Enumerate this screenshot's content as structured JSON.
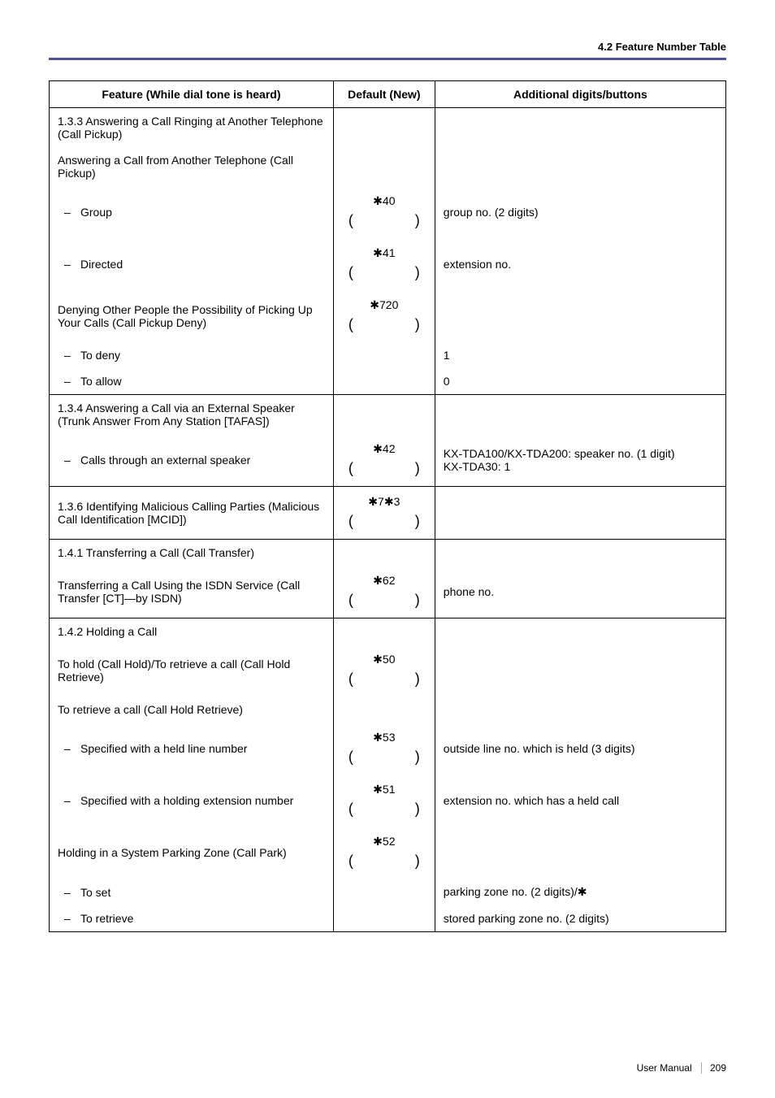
{
  "header": {
    "section_title": "4.2 Feature Number Table"
  },
  "table": {
    "headers": {
      "feature": "Feature (While dial tone is heard)",
      "default": "Default (New)",
      "additional": "Additional digits/buttons"
    },
    "rows": [
      {
        "feature": "1.3.3 Answering a Call Ringing at Another Telephone (Call Pickup)",
        "default": "",
        "additional": "",
        "section": true
      },
      {
        "feature": "Answering a Call from Another Telephone (Call Pickup)",
        "default": "",
        "additional": "",
        "section": true
      },
      {
        "feature": "Group",
        "default": "*40",
        "default_parens": true,
        "additional": "group no. (2 digits)",
        "sub": true
      },
      {
        "feature": "Directed",
        "default": "*41",
        "default_parens": true,
        "additional": "extension no.",
        "sub": true
      },
      {
        "feature": "Denying Other People the Possibility of Picking Up Your Calls (Call Pickup Deny)",
        "default": "*720",
        "default_parens": true,
        "additional": ""
      },
      {
        "feature": "To deny",
        "default": "",
        "additional": "1",
        "sub": true
      },
      {
        "feature": "To allow",
        "default": "",
        "additional": "0",
        "sub": true
      },
      {
        "feature": "1.3.4 Answering a Call via an External Speaker (Trunk Answer From Any Station [TAFAS])",
        "default": "",
        "additional": "",
        "section": true
      },
      {
        "feature": "Calls through an external speaker",
        "default": "*42",
        "default_parens": true,
        "additional": "KX-TDA100/KX-TDA200: speaker no. (1 digit)\nKX-TDA30: 1",
        "sub": true
      },
      {
        "feature": "1.3.6 Identifying Malicious Calling Parties (Malicious Call Identification [MCID])",
        "default": "*7*3",
        "default_parens": true,
        "additional": ""
      },
      {
        "feature": "1.4.1 Transferring a Call (Call Transfer)",
        "default": "",
        "additional": "",
        "section": true
      },
      {
        "feature": "Transferring a Call Using the ISDN Service (Call Transfer [CT]—by ISDN)",
        "default": "*62",
        "default_parens": true,
        "additional": "phone no."
      },
      {
        "feature": "1.4.2 Holding a Call",
        "default": "",
        "additional": "",
        "section": true
      },
      {
        "feature": "To hold (Call Hold)/To retrieve a call (Call Hold Retrieve)",
        "default": "*50",
        "default_parens": true,
        "additional": ""
      },
      {
        "feature": "To retrieve a call (Call Hold Retrieve)",
        "default": "",
        "additional": "",
        "section": true
      },
      {
        "feature": "Specified with a held line number",
        "default": "*53",
        "default_parens": true,
        "additional": "outside line no. which is held (3 digits)",
        "sub": true
      },
      {
        "feature": "Specified with a holding extension number",
        "default": "*51",
        "default_parens": true,
        "additional": "extension no. which has a held call",
        "sub": true
      },
      {
        "feature": "Holding in a System Parking Zone (Call Park)",
        "default": "*52",
        "default_parens": true,
        "additional": ""
      },
      {
        "feature": "To set",
        "default": "",
        "additional": "parking zone no. (2 digits)/*",
        "sub": true
      },
      {
        "feature": "To retrieve",
        "default": "",
        "additional": "stored parking zone no. (2 digits)",
        "sub": true
      }
    ]
  },
  "footer": {
    "label": "User Manual",
    "page": "209"
  }
}
